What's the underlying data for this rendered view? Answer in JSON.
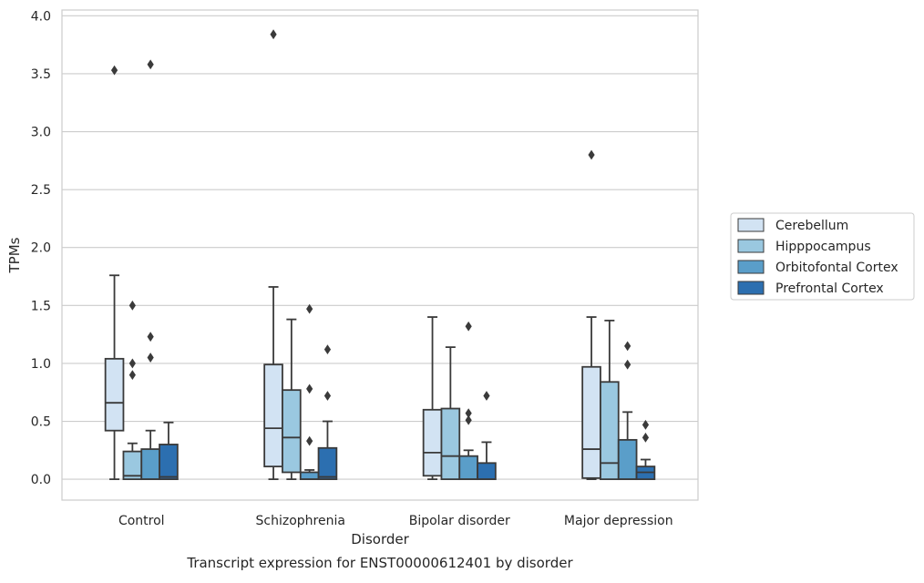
{
  "chart_data": {
    "type": "box",
    "caption": "Transcript expression for ENST00000612401 by disorder",
    "xlabel": "Disorder",
    "ylabel": "TPMs",
    "ylim": [
      -0.18,
      4.05
    ],
    "yticks": [
      0.0,
      0.5,
      1.0,
      1.5,
      2.0,
      2.5,
      3.0,
      3.5,
      4.0
    ],
    "grid": "horizontal",
    "legend_position": "right",
    "categories": [
      "Control",
      "Schizophrenia",
      "Bipolar disorder",
      "Major depression"
    ],
    "series": [
      {
        "name": "Cerebellum",
        "color": "#d2e3f3",
        "boxes": [
          {
            "whisker_low": 0.0,
            "q1": 0.42,
            "median": 0.66,
            "q3": 1.04,
            "whisker_high": 1.76,
            "outliers": [
              3.53
            ]
          },
          {
            "whisker_low": 0.0,
            "q1": 0.11,
            "median": 0.44,
            "q3": 0.99,
            "whisker_high": 1.66,
            "outliers": [
              3.84
            ]
          },
          {
            "whisker_low": 0.0,
            "q1": 0.03,
            "median": 0.23,
            "q3": 0.6,
            "whisker_high": 1.4,
            "outliers": []
          },
          {
            "whisker_low": 0.0,
            "q1": 0.01,
            "median": 0.26,
            "q3": 0.97,
            "whisker_high": 1.4,
            "outliers": [
              2.8
            ]
          }
        ]
      },
      {
        "name": "Hipppocampus",
        "color": "#9ac8e0",
        "boxes": [
          {
            "whisker_low": 0.0,
            "q1": 0.0,
            "median": 0.03,
            "q3": 0.24,
            "whisker_high": 0.31,
            "outliers": [
              0.9,
              1.0,
              1.5
            ]
          },
          {
            "whisker_low": 0.0,
            "q1": 0.06,
            "median": 0.36,
            "q3": 0.77,
            "whisker_high": 1.38,
            "outliers": []
          },
          {
            "whisker_low": 0.0,
            "q1": 0.0,
            "median": 0.2,
            "q3": 0.61,
            "whisker_high": 1.14,
            "outliers": []
          },
          {
            "whisker_low": 0.0,
            "q1": 0.0,
            "median": 0.14,
            "q3": 0.84,
            "whisker_high": 1.37,
            "outliers": []
          }
        ]
      },
      {
        "name": "Orbitofontal Cortex",
        "color": "#5a9ec9",
        "boxes": [
          {
            "whisker_low": 0.0,
            "q1": 0.0,
            "median": 0.0,
            "q3": 0.26,
            "whisker_high": 0.42,
            "outliers": [
              1.05,
              1.23,
              3.58
            ]
          },
          {
            "whisker_low": 0.0,
            "q1": 0.0,
            "median": 0.0,
            "q3": 0.06,
            "whisker_high": 0.08,
            "outliers": [
              0.33,
              0.78,
              1.47
            ]
          },
          {
            "whisker_low": 0.0,
            "q1": 0.0,
            "median": 0.0,
            "q3": 0.2,
            "whisker_high": 0.25,
            "outliers": [
              0.51,
              0.57,
              1.32
            ]
          },
          {
            "whisker_low": 0.0,
            "q1": 0.0,
            "median": 0.0,
            "q3": 0.34,
            "whisker_high": 0.58,
            "outliers": [
              0.99,
              1.15
            ]
          }
        ]
      },
      {
        "name": "Prefrontal Cortex",
        "color": "#2c6fb0",
        "boxes": [
          {
            "whisker_low": 0.0,
            "q1": 0.0,
            "median": 0.02,
            "q3": 0.3,
            "whisker_high": 0.49,
            "outliers": []
          },
          {
            "whisker_low": 0.0,
            "q1": 0.0,
            "median": 0.02,
            "q3": 0.27,
            "whisker_high": 0.5,
            "outliers": [
              0.72,
              1.12
            ]
          },
          {
            "whisker_low": 0.0,
            "q1": 0.0,
            "median": 0.0,
            "q3": 0.14,
            "whisker_high": 0.32,
            "outliers": [
              0.72
            ]
          },
          {
            "whisker_low": 0.0,
            "q1": 0.0,
            "median": 0.06,
            "q3": 0.11,
            "whisker_high": 0.17,
            "outliers": [
              0.36,
              0.47
            ]
          }
        ]
      }
    ]
  }
}
